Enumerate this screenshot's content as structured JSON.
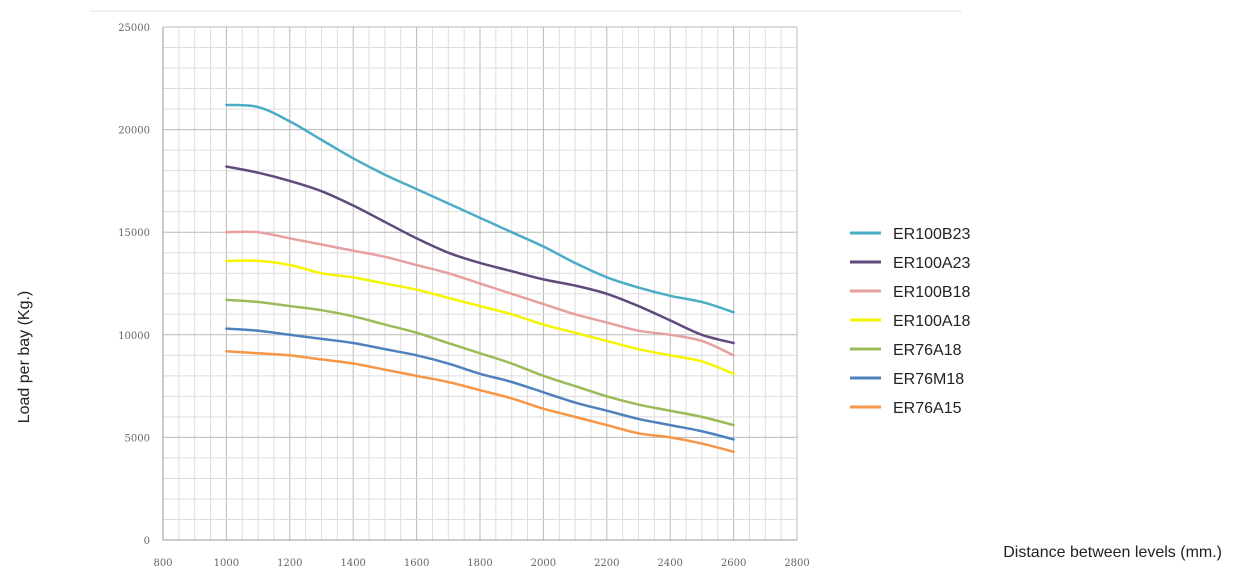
{
  "chart_data": {
    "type": "line",
    "title": "",
    "xlabel": "Distance between levels (mm.)",
    "ylabel": "Load per bay (Kg.)",
    "xlim": [
      800,
      2800
    ],
    "ylim": [
      0,
      25000
    ],
    "x_ticks": [
      "800",
      "1000",
      "1200",
      "1400",
      "1600",
      "1800",
      "2000",
      "2200",
      "2400",
      "2600",
      "2800"
    ],
    "y_ticks": [
      "0",
      "5000",
      "10000",
      "15000",
      "20000",
      "25000"
    ],
    "x_tick_values": [
      800,
      1000,
      1200,
      1400,
      1600,
      1800,
      2000,
      2200,
      2400,
      2600,
      2800
    ],
    "y_tick_values": [
      0,
      5000,
      10000,
      15000,
      20000,
      25000
    ],
    "grid": true,
    "legend_position": "right",
    "x": [
      1000,
      1100,
      1200,
      1300,
      1400,
      1500,
      1600,
      1700,
      1800,
      1900,
      2000,
      2100,
      2200,
      2300,
      2400,
      2500,
      2600
    ],
    "series": [
      {
        "name": "ER100B23",
        "color": "#4BACC6",
        "values": [
          21200,
          21100,
          20400,
          19500,
          18600,
          17800,
          17100,
          16400,
          15700,
          15000,
          14300,
          13500,
          12800,
          12300,
          11900,
          11600,
          11100
        ]
      },
      {
        "name": "ER100A23",
        "color": "#604A7B",
        "values": [
          18200,
          17900,
          17500,
          17000,
          16300,
          15500,
          14700,
          14000,
          13500,
          13100,
          12700,
          12400,
          12000,
          11400,
          10700,
          10000,
          9600
        ]
      },
      {
        "name": "ER100B18",
        "color": "#E6A0A0",
        "values": [
          15000,
          15000,
          14700,
          14400,
          14100,
          13800,
          13400,
          13000,
          12500,
          12000,
          11500,
          11000,
          10600,
          10200,
          10000,
          9700,
          9000
        ]
      },
      {
        "name": "ER100A18",
        "color": "#F5F500",
        "values": [
          13600,
          13600,
          13400,
          13000,
          12800,
          12500,
          12200,
          11800,
          11400,
          11000,
          10500,
          10100,
          9700,
          9300,
          9000,
          8700,
          8100
        ]
      },
      {
        "name": "ER76A18",
        "color": "#9BBB59",
        "values": [
          11700,
          11600,
          11400,
          11200,
          10900,
          10500,
          10100,
          9600,
          9100,
          8600,
          8000,
          7500,
          7000,
          6600,
          6300,
          6000,
          5600
        ]
      },
      {
        "name": "ER76M18",
        "color": "#4F81BD",
        "values": [
          10300,
          10200,
          10000,
          9800,
          9600,
          9300,
          9000,
          8600,
          8100,
          7700,
          7200,
          6700,
          6300,
          5900,
          5600,
          5300,
          4900
        ]
      },
      {
        "name": "ER76A15",
        "color": "#F79646",
        "values": [
          9200,
          9100,
          9000,
          8800,
          8600,
          8300,
          8000,
          7700,
          7300,
          6900,
          6400,
          6000,
          5600,
          5200,
          5000,
          4700,
          4300
        ]
      }
    ]
  }
}
